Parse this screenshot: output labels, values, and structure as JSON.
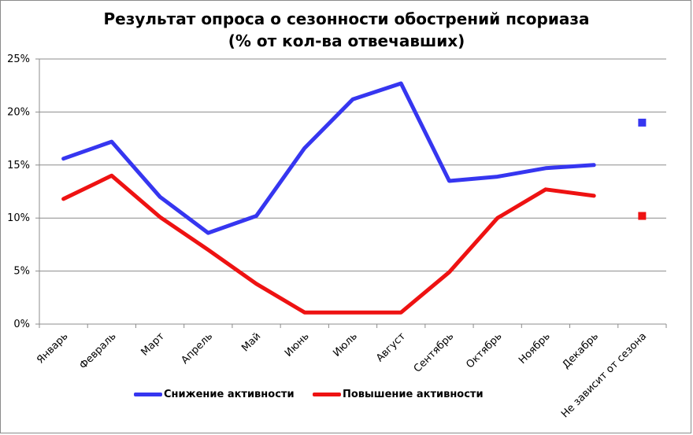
{
  "chart_data": {
    "type": "line",
    "title": "Результат опроса о сезонности обострений псориаза",
    "subtitle": "(% от кол-ва отвечавших)",
    "categories": [
      "Январь",
      "Февраль",
      "Март",
      "Апрель",
      "Май",
      "Июнь",
      "Июль",
      "Август",
      "Сентябрь",
      "Октябрь",
      "Ноябрь",
      "Декабрь",
      "Не зависит от сезона"
    ],
    "series": [
      {
        "name": "Снижение активности",
        "color": "#3636f0",
        "values": [
          15.6,
          17.2,
          12.0,
          8.6,
          10.2,
          16.6,
          21.2,
          22.7,
          13.5,
          13.9,
          14.7,
          15.0,
          19.0
        ]
      },
      {
        "name": "Повышение активности",
        "color": "#ee1212",
        "values": [
          11.8,
          14.0,
          10.1,
          7.0,
          3.8,
          1.1,
          1.1,
          1.1,
          4.9,
          10.0,
          12.7,
          12.1,
          10.2
        ]
      }
    ],
    "y_ticks": [
      "0%",
      "5%",
      "10%",
      "15%",
      "20%",
      "25%"
    ],
    "ylim": [
      0,
      25
    ],
    "grid": true,
    "legend_position": "bottom-left"
  }
}
